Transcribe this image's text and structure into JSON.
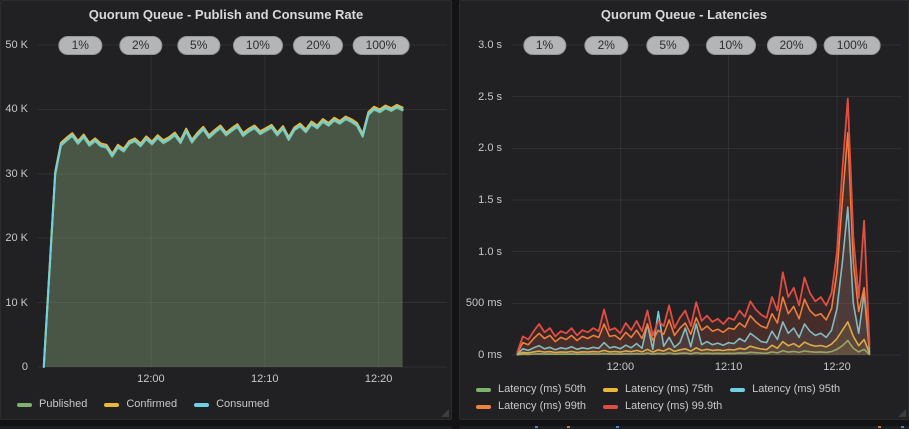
{
  "colors": {
    "green": "#7EB26D",
    "yellow": "#EAB839",
    "cyan": "#6ED0E0",
    "orange": "#EF843C",
    "red": "#E24D42",
    "panel_bg": "#212124",
    "page_bg": "#131316",
    "annotation_pill_bg": "#b4b5b6",
    "axis_text": "#c7c8ca",
    "title_text": "#d8d9da"
  },
  "chart_data": [
    {
      "id": "rate",
      "type": "area",
      "title": "Quorum Queue - Publish and Consume Rate",
      "grid": true,
      "legend_position": "bottom-left",
      "x_max": 36,
      "x_start": 0.6,
      "x_step": 0.5,
      "x_ticks": [
        {
          "t": 10,
          "label": "12:00"
        },
        {
          "t": 20,
          "label": "12:10"
        },
        {
          "t": 30,
          "label": "12:20"
        }
      ],
      "y_top": 50,
      "y_ticks": [
        {
          "v": 50,
          "label": "50 K"
        },
        {
          "v": 40,
          "label": "40 K"
        },
        {
          "v": 30,
          "label": "30 K"
        },
        {
          "v": 20,
          "label": "20 K"
        },
        {
          "v": 10,
          "label": "10 K"
        },
        {
          "v": 0,
          "label": "0"
        }
      ],
      "annotations": [
        {
          "label": "1%",
          "t": 3.8
        },
        {
          "label": "2%",
          "t": 9.1
        },
        {
          "label": "5%",
          "t": 14.2
        },
        {
          "label": "10%",
          "t": 19.4
        },
        {
          "label": "20%",
          "t": 24.7
        },
        {
          "label": "100%",
          "t": 30.2
        }
      ],
      "series": [
        {
          "name": "Published",
          "color": "#7EB26D",
          "line_width": 2,
          "fill_opacity": 0.13,
          "values_from": "Consumed",
          "offset": -0.15
        },
        {
          "name": "Confirmed",
          "color": "#EAB839",
          "line_width": 2,
          "fill_opacity": 0.13,
          "values_from": "Consumed",
          "offset": 0.3
        },
        {
          "name": "Consumed",
          "color": "#6ED0E0",
          "line_width": 2,
          "fill_opacity": 0.13,
          "values": [
            0,
            15,
            30,
            34.5,
            35.3,
            36.0,
            34.8,
            35.8,
            34.5,
            35.2,
            34.4,
            34.2,
            32.8,
            34.2,
            33.6,
            34.8,
            35.2,
            34.4,
            35.5,
            34.7,
            35.7,
            34.9,
            35.4,
            36.1,
            34.9,
            36.7,
            35.0,
            36.1,
            37.0,
            35.7,
            36.5,
            37.2,
            36.1,
            36.8,
            37.4,
            36.0,
            36.7,
            37.2,
            36.3,
            36.8,
            37.3,
            36.1,
            37.1,
            35.4,
            36.9,
            37.5,
            36.6,
            37.8,
            37.2,
            38.2,
            37.6,
            38.4,
            37.9,
            38.6,
            38.2,
            37.6,
            35.9,
            39.3,
            40.1,
            39.7,
            40.3,
            39.9,
            40.4,
            40.0
          ]
        }
      ]
    },
    {
      "id": "lat",
      "type": "line",
      "title": "Quorum Queue - Latencies",
      "grid": true,
      "legend_position": "bottom-left",
      "x_max": 36,
      "x_start": 0.5,
      "x_step": 0.5,
      "x_ticks": [
        {
          "t": 10,
          "label": "12:00"
        },
        {
          "t": 20,
          "label": "12:10"
        },
        {
          "t": 30,
          "label": "12:20"
        }
      ],
      "y_top": 3000,
      "y_ticks": [
        {
          "v": 3000,
          "label": "3.0 s"
        },
        {
          "v": 2500,
          "label": "2.5 s"
        },
        {
          "v": 2000,
          "label": "2.0 s"
        },
        {
          "v": 1500,
          "label": "1.5 s"
        },
        {
          "v": 1000,
          "label": "1.0 s"
        },
        {
          "v": 500,
          "label": "500 ms"
        },
        {
          "v": 0,
          "label": "0 ms"
        }
      ],
      "annotations": [
        {
          "label": "1%",
          "t": 3.0
        },
        {
          "label": "2%",
          "t": 8.7
        },
        {
          "label": "5%",
          "t": 14.4
        },
        {
          "label": "10%",
          "t": 20.2
        },
        {
          "label": "20%",
          "t": 25.8
        },
        {
          "label": "100%",
          "t": 31.4
        }
      ],
      "series": [
        {
          "name": "Latency (ms) 50th",
          "color": "#7EB26D",
          "line_width": 1.6,
          "fill_opacity": 0.1,
          "values": [
            2,
            8,
            6,
            10,
            12,
            9,
            11,
            8,
            10,
            9,
            11,
            8,
            10,
            9,
            11,
            10,
            14,
            10,
            11,
            9,
            13,
            10,
            14,
            10,
            17,
            9,
            15,
            12,
            20,
            11,
            16,
            18,
            12,
            22,
            14,
            17,
            14,
            16,
            14,
            16,
            15,
            20,
            17,
            26,
            22,
            18,
            16,
            30,
            20,
            42,
            28,
            35,
            25,
            40,
            32,
            27,
            30,
            25,
            34,
            55,
            90,
            140,
            65,
            30,
            55,
            5
          ]
        },
        {
          "name": "Latency (ms) 75th",
          "color": "#EAB839",
          "line_width": 1.6,
          "fill_opacity": 0.1,
          "values": [
            5,
            25,
            20,
            30,
            38,
            28,
            33,
            24,
            30,
            27,
            34,
            25,
            31,
            28,
            33,
            29,
            45,
            30,
            34,
            28,
            40,
            32,
            45,
            30,
            55,
            28,
            50,
            38,
            65,
            35,
            50,
            60,
            38,
            70,
            45,
            55,
            45,
            50,
            44,
            52,
            48,
            65,
            55,
            85,
            70,
            58,
            52,
            95,
            65,
            130,
            90,
            110,
            78,
            125,
            100,
            85,
            92,
            78,
            105,
            160,
            240,
            320,
            180,
            90,
            150,
            15
          ]
        },
        {
          "name": "Latency (ms) 95th",
          "color": "#6ED0E0",
          "line_width": 1.6,
          "fill_opacity": 0.1,
          "values": [
            10,
            60,
            45,
            70,
            90,
            60,
            75,
            50,
            70,
            60,
            80,
            55,
            70,
            60,
            75,
            65,
            120,
            70,
            80,
            60,
            95,
            70,
            110,
            65,
            300,
            55,
            420,
            85,
            170,
            75,
            120,
            260,
            80,
            300,
            100,
            130,
            100,
            115,
            95,
            120,
            110,
            160,
            130,
            210,
            170,
            130,
            120,
            230,
            150,
            320,
            210,
            260,
            170,
            300,
            230,
            190,
            210,
            170,
            240,
            450,
            900,
            1430,
            500,
            210,
            600,
            30
          ]
        },
        {
          "name": "Latency (ms) 99th",
          "color": "#EF843C",
          "line_width": 1.6,
          "fill_opacity": 0.1,
          "values": [
            20,
            120,
            100,
            160,
            210,
            160,
            190,
            130,
            170,
            150,
            190,
            140,
            180,
            160,
            190,
            170,
            300,
            180,
            190,
            150,
            220,
            170,
            240,
            160,
            300,
            140,
            240,
            200,
            340,
            190,
            260,
            310,
            200,
            360,
            240,
            280,
            230,
            250,
            220,
            260,
            250,
            310,
            270,
            380,
            320,
            280,
            260,
            400,
            310,
            560,
            400,
            470,
            350,
            540,
            430,
            380,
            400,
            340,
            450,
            800,
            1500,
            2150,
            900,
            420,
            650,
            60
          ]
        },
        {
          "name": "Latency (ms) 99.9th",
          "color": "#E24D42",
          "line_width": 1.8,
          "fill_opacity": 0.1,
          "values": [
            30,
            180,
            150,
            230,
            300,
            220,
            260,
            180,
            230,
            210,
            260,
            190,
            240,
            220,
            260,
            230,
            440,
            240,
            260,
            210,
            310,
            240,
            330,
            230,
            430,
            190,
            330,
            280,
            480,
            260,
            360,
            430,
            280,
            510,
            330,
            380,
            320,
            350,
            300,
            360,
            340,
            430,
            370,
            520,
            440,
            390,
            360,
            560,
            430,
            800,
            560,
            650,
            480,
            750,
            600,
            520,
            560,
            480,
            600,
            1000,
            1800,
            2480,
            1150,
            550,
            1300,
            100
          ]
        }
      ]
    }
  ]
}
